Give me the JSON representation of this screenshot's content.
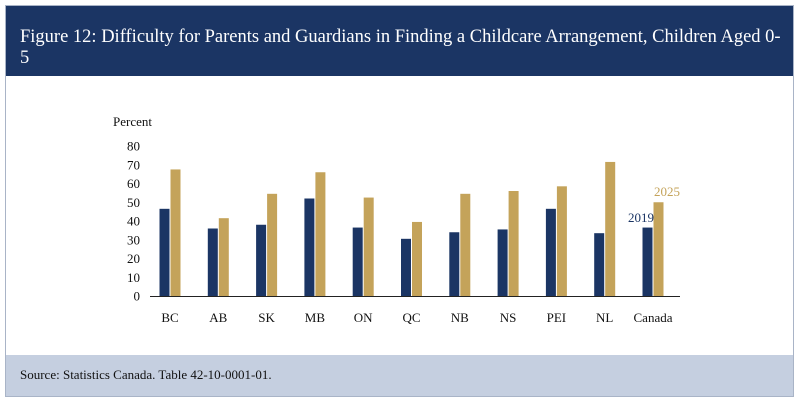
{
  "figure": {
    "title": "Figure 12: Difficulty for Parents and Guardians in Finding a Childcare Arrangement, Children Aged 0-5",
    "source": "Source: Statistics Canada. Table 42-10-0001-01."
  },
  "colors": {
    "header": "#1b3564",
    "series_2019": "#1b3564",
    "series_2025": "#c4a35a",
    "footer": "#c5cfe0"
  },
  "chart_data": {
    "type": "bar",
    "title": "",
    "ylabel": "Percent",
    "xlabel": "",
    "ylim": [
      0,
      80
    ],
    "yticks": [
      0,
      10,
      20,
      30,
      40,
      50,
      60,
      70,
      80
    ],
    "categories": [
      "BC",
      "AB",
      "SK",
      "MB",
      "ON",
      "QC",
      "NB",
      "NS",
      "PEI",
      "NL",
      "Canada"
    ],
    "series": [
      {
        "name": "2019",
        "values": [
          46.5,
          36,
          38,
          52,
          36.5,
          30.5,
          34,
          35.5,
          46.5,
          33.5,
          36.5
        ]
      },
      {
        "name": "2025",
        "values": [
          67.5,
          41.5,
          54.5,
          66,
          52.5,
          39.5,
          54.5,
          56,
          58.5,
          71.5,
          50
        ]
      }
    ],
    "annotations": [
      "2019",
      "2025"
    ]
  }
}
